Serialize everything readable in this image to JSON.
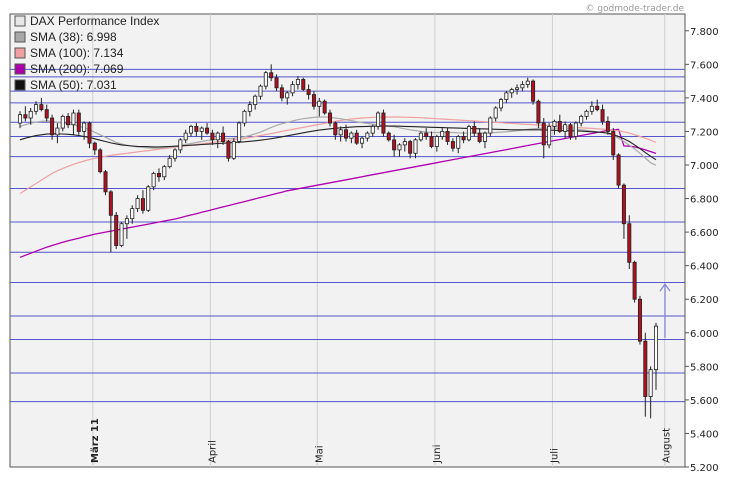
{
  "watermark": "© godmode-trader.de",
  "chart_data": {
    "type": "candlestick",
    "title": "DAX Performance Index",
    "ylim": [
      5200,
      7900
    ],
    "y_ticks": [
      "7.800",
      "7.600",
      "7.400",
      "7.200",
      "7.000",
      "6.800",
      "6.600",
      "6.400",
      "6.200",
      "6.000",
      "5.800",
      "5.600",
      "5.400",
      "5.200"
    ],
    "y_tick_values": [
      7800,
      7600,
      7400,
      7200,
      7000,
      6800,
      6600,
      6400,
      6200,
      6000,
      5800,
      5600,
      5400,
      5200
    ],
    "month_labels": [
      {
        "label": "März 11",
        "bold": true,
        "index": 14
      },
      {
        "label": "April",
        "bold": false,
        "index": 36
      },
      {
        "label": "Mai",
        "bold": false,
        "index": 56
      },
      {
        "label": "Juni",
        "bold": false,
        "index": 78
      },
      {
        "label": "Juli",
        "bold": false,
        "index": 100
      },
      {
        "label": "August",
        "bold": false,
        "index": 121
      }
    ],
    "horizontal_lines": [
      7570,
      7525,
      7440,
      7370,
      7255,
      7170,
      7050,
      6860,
      6660,
      6480,
      6300,
      6100,
      5960,
      5760,
      5590
    ],
    "legend": [
      {
        "label": "DAX Performance Index",
        "swatch": "#e8e8e8",
        "border": "#555555"
      },
      {
        "label": "SMA (38): 6.998",
        "swatch": "#a8a8a8",
        "border": "#555555"
      },
      {
        "label": "SMA (100): 7.134",
        "swatch": "#f0a0a0",
        "border": "#555555"
      },
      {
        "label": "SMA (200): 7.069",
        "swatch": "#aa00aa",
        "border": "#555555"
      },
      {
        "label": "SMA (50): 7.031",
        "swatch": "#111111",
        "border": "#555555"
      }
    ],
    "colors": {
      "up": "#ffffff",
      "down": "#b01020",
      "wick": "#222222",
      "hline": "#5555cc",
      "sma38": "#aaaaaa",
      "sma50": "#222222",
      "sma100": "#f0a0a0",
      "sma200": "#b000b0",
      "arrow": "#8888dd",
      "grid_v": "#d0d0d0",
      "plot_bg": "#f2f2f2"
    },
    "candles": [
      [
        7250,
        7320,
        7220,
        7300
      ],
      [
        7300,
        7350,
        7260,
        7280
      ],
      [
        7280,
        7340,
        7240,
        7320
      ],
      [
        7320,
        7380,
        7300,
        7360
      ],
      [
        7360,
        7400,
        7320,
        7330
      ],
      [
        7330,
        7360,
        7260,
        7280
      ],
      [
        7280,
        7300,
        7150,
        7180
      ],
      [
        7180,
        7250,
        7130,
        7220
      ],
      [
        7220,
        7300,
        7200,
        7290
      ],
      [
        7290,
        7310,
        7220,
        7240
      ],
      [
        7240,
        7330,
        7180,
        7310
      ],
      [
        7310,
        7330,
        7180,
        7200
      ],
      [
        7200,
        7260,
        7150,
        7250
      ],
      [
        7250,
        7260,
        7100,
        7130
      ],
      [
        7130,
        7140,
        7060,
        7090
      ],
      [
        7090,
        7100,
        6950,
        6960
      ],
      [
        6960,
        6970,
        6820,
        6840
      ],
      [
        6840,
        6850,
        6480,
        6700
      ],
      [
        6700,
        6720,
        6500,
        6520
      ],
      [
        6520,
        6660,
        6510,
        6650
      ],
      [
        6650,
        6700,
        6560,
        6680
      ],
      [
        6680,
        6760,
        6650,
        6740
      ],
      [
        6740,
        6820,
        6720,
        6800
      ],
      [
        6800,
        6850,
        6710,
        6730
      ],
      [
        6730,
        6880,
        6720,
        6870
      ],
      [
        6870,
        6960,
        6850,
        6950
      ],
      [
        6950,
        6980,
        6900,
        6930
      ],
      [
        6930,
        7000,
        6910,
        6990
      ],
      [
        6990,
        7060,
        6980,
        7040
      ],
      [
        7040,
        7100,
        7020,
        7090
      ],
      [
        7090,
        7160,
        7070,
        7150
      ],
      [
        7150,
        7210,
        7130,
        7190
      ],
      [
        7190,
        7240,
        7170,
        7230
      ],
      [
        7230,
        7250,
        7170,
        7200
      ],
      [
        7200,
        7230,
        7150,
        7220
      ],
      [
        7220,
        7250,
        7180,
        7190
      ],
      [
        7190,
        7210,
        7120,
        7150
      ],
      [
        7150,
        7200,
        7100,
        7190
      ],
      [
        7190,
        7230,
        7120,
        7140
      ],
      [
        7140,
        7150,
        7020,
        7040
      ],
      [
        7040,
        7160,
        7030,
        7140
      ],
      [
        7140,
        7260,
        7130,
        7250
      ],
      [
        7250,
        7330,
        7230,
        7320
      ],
      [
        7320,
        7380,
        7290,
        7360
      ],
      [
        7360,
        7420,
        7330,
        7410
      ],
      [
        7410,
        7480,
        7390,
        7470
      ],
      [
        7470,
        7560,
        7450,
        7550
      ],
      [
        7550,
        7600,
        7500,
        7520
      ],
      [
        7520,
        7540,
        7440,
        7460
      ],
      [
        7460,
        7480,
        7380,
        7400
      ],
      [
        7400,
        7440,
        7360,
        7430
      ],
      [
        7430,
        7500,
        7410,
        7480
      ],
      [
        7480,
        7530,
        7450,
        7510
      ],
      [
        7510,
        7520,
        7440,
        7450
      ],
      [
        7450,
        7480,
        7390,
        7420
      ],
      [
        7420,
        7440,
        7330,
        7350
      ],
      [
        7350,
        7400,
        7290,
        7380
      ],
      [
        7380,
        7390,
        7300,
        7310
      ],
      [
        7310,
        7330,
        7230,
        7250
      ],
      [
        7250,
        7260,
        7150,
        7180
      ],
      [
        7180,
        7230,
        7140,
        7210
      ],
      [
        7210,
        7240,
        7140,
        7160
      ],
      [
        7160,
        7200,
        7130,
        7190
      ],
      [
        7190,
        7210,
        7120,
        7130
      ],
      [
        7130,
        7170,
        7100,
        7160
      ],
      [
        7160,
        7200,
        7140,
        7190
      ],
      [
        7190,
        7240,
        7170,
        7230
      ],
      [
        7230,
        7320,
        7210,
        7310
      ],
      [
        7310,
        7330,
        7170,
        7190
      ],
      [
        7190,
        7200,
        7140,
        7150
      ],
      [
        7150,
        7180,
        7050,
        7090
      ],
      [
        7090,
        7130,
        7050,
        7120
      ],
      [
        7120,
        7160,
        7080,
        7140
      ],
      [
        7140,
        7150,
        7040,
        7070
      ],
      [
        7070,
        7160,
        7040,
        7150
      ],
      [
        7150,
        7200,
        7140,
        7190
      ],
      [
        7190,
        7220,
        7150,
        7170
      ],
      [
        7170,
        7200,
        7100,
        7110
      ],
      [
        7110,
        7180,
        7080,
        7170
      ],
      [
        7170,
        7220,
        7150,
        7200
      ],
      [
        7200,
        7220,
        7120,
        7140
      ],
      [
        7140,
        7160,
        7080,
        7100
      ],
      [
        7100,
        7180,
        7070,
        7170
      ],
      [
        7170,
        7200,
        7130,
        7150
      ],
      [
        7150,
        7240,
        7140,
        7230
      ],
      [
        7230,
        7260,
        7170,
        7190
      ],
      [
        7190,
        7220,
        7130,
        7140
      ],
      [
        7140,
        7200,
        7100,
        7190
      ],
      [
        7190,
        7290,
        7170,
        7280
      ],
      [
        7280,
        7350,
        7260,
        7340
      ],
      [
        7340,
        7400,
        7320,
        7390
      ],
      [
        7390,
        7440,
        7370,
        7430
      ],
      [
        7430,
        7460,
        7400,
        7450
      ],
      [
        7450,
        7480,
        7420,
        7460
      ],
      [
        7460,
        7500,
        7440,
        7480
      ],
      [
        7480,
        7520,
        7460,
        7500
      ],
      [
        7500,
        7510,
        7360,
        7380
      ],
      [
        7380,
        7390,
        7220,
        7250
      ],
      [
        7250,
        7280,
        7040,
        7120
      ],
      [
        7120,
        7250,
        7100,
        7230
      ],
      [
        7230,
        7270,
        7180,
        7260
      ],
      [
        7260,
        7300,
        7190,
        7200
      ],
      [
        7200,
        7260,
        7160,
        7240
      ],
      [
        7240,
        7250,
        7150,
        7170
      ],
      [
        7170,
        7260,
        7150,
        7250
      ],
      [
        7250,
        7300,
        7230,
        7290
      ],
      [
        7290,
        7330,
        7270,
        7320
      ],
      [
        7320,
        7380,
        7300,
        7350
      ],
      [
        7350,
        7390,
        7320,
        7330
      ],
      [
        7330,
        7360,
        7240,
        7260
      ],
      [
        7260,
        7290,
        7180,
        7200
      ],
      [
        7200,
        7220,
        7030,
        7060
      ],
      [
        7060,
        7070,
        6860,
        6880
      ],
      [
        6880,
        6890,
        6560,
        6650
      ],
      [
        6650,
        6700,
        6380,
        6420
      ],
      [
        6420,
        6430,
        6180,
        6200
      ],
      [
        6200,
        6220,
        5930,
        5950
      ],
      [
        5950,
        6000,
        5500,
        5620
      ],
      [
        5620,
        5800,
        5490,
        5780
      ],
      [
        5780,
        6060,
        5660,
        6040
      ]
    ],
    "sma38": [
      7230,
      7240,
      7250,
      7255,
      7260,
      7262,
      7260,
      7255,
      7250,
      7245,
      7240,
      7232,
      7222,
      7210,
      7195,
      7180,
      7165,
      7150,
      7135,
      7125,
      7118,
      7112,
      7108,
      7105,
      7102,
      7100,
      7100,
      7102,
      7106,
      7110,
      7116,
      7122,
      7128,
      7134,
      7140,
      7146,
      7150,
      7154,
      7156,
      7158,
      7160,
      7164,
      7168,
      7176,
      7186,
      7196,
      7210,
      7224,
      7236,
      7246,
      7254,
      7262,
      7270,
      7276,
      7280,
      7284,
      7286,
      7286,
      7284,
      7280,
      7276,
      7270,
      7264,
      7258,
      7252,
      7248,
      7244,
      7240,
      7236,
      7232,
      7228,
      7222,
      7216,
      7210,
      7205,
      7200,
      7196,
      7194,
      7194,
      7194,
      7194,
      7194,
      7192,
      7190,
      7190,
      7190,
      7190,
      7191,
      7192,
      7194,
      7196,
      7198,
      7200,
      7204,
      7208,
      7212,
      7216,
      7218,
      7220,
      7220,
      7220,
      7220,
      7218,
      7216,
      7214,
      7210,
      7206,
      7202,
      7198,
      7194,
      7188,
      7176,
      7160,
      7140,
      7118,
      7096,
      7070,
      7042,
      7014,
      6998
    ],
    "sma50": [
      7150,
      7160,
      7168,
      7175,
      7180,
      7184,
      7186,
      7186,
      7185,
      7183,
      7180,
      7176,
      7170,
      7164,
      7156,
      7148,
      7140,
      7132,
      7126,
      7120,
      7116,
      7113,
      7111,
      7110,
      7109,
      7108,
      7108,
      7109,
      7110,
      7112,
      7114,
      7116,
      7118,
      7120,
      7122,
      7124,
      7126,
      7128,
      7130,
      7132,
      7134,
      7136,
      7138,
      7141,
      7144,
      7148,
      7152,
      7157,
      7162,
      7168,
      7174,
      7180,
      7186,
      7192,
      7198,
      7203,
      7208,
      7212,
      7216,
      7219,
      7222,
      7224,
      7226,
      7228,
      7229,
      7230,
      7231,
      7232,
      7232,
      7232,
      7232,
      7231,
      7230,
      7229,
      7228,
      7227,
      7226,
      7225,
      7224,
      7223,
      7222,
      7221,
      7220,
      7219,
      7218,
      7217,
      7216,
      7215,
      7214,
      7213,
      7212,
      7211,
      7210,
      7210,
      7210,
      7210,
      7210,
      7210,
      7209,
      7208,
      7207,
      7206,
      7205,
      7204,
      7203,
      7202,
      7200,
      7198,
      7196,
      7194,
      7190,
      7182,
      7170,
      7156,
      7140,
      7120,
      7098,
      7074,
      7052,
      7031
    ],
    "sma100": [
      6830,
      6850,
      6870,
      6890,
      6910,
      6930,
      6950,
      6966,
      6980,
      6992,
      7004,
      7014,
      7024,
      7032,
      7040,
      7046,
      7052,
      7058,
      7062,
      7066,
      7070,
      7074,
      7078,
      7082,
      7086,
      7090,
      7094,
      7098,
      7102,
      7106,
      7110,
      7114,
      7118,
      7122,
      7126,
      7130,
      7134,
      7138,
      7142,
      7146,
      7150,
      7154,
      7158,
      7164,
      7170,
      7176,
      7182,
      7188,
      7194,
      7200,
      7206,
      7212,
      7218,
      7224,
      7230,
      7236,
      7242,
      7248,
      7254,
      7260,
      7266,
      7270,
      7274,
      7277,
      7280,
      7282,
      7284,
      7285,
      7286,
      7286,
      7286,
      7286,
      7285,
      7284,
      7283,
      7282,
      7280,
      7278,
      7276,
      7274,
      7272,
      7270,
      7268,
      7266,
      7264,
      7262,
      7260,
      7258,
      7256,
      7254,
      7252,
      7250,
      7248,
      7246,
      7244,
      7242,
      7240,
      7238,
      7236,
      7234,
      7232,
      7230,
      7228,
      7226,
      7224,
      7222,
      7220,
      7218,
      7216,
      7214,
      7212,
      7208,
      7204,
      7198,
      7190,
      7180,
      7170,
      7160,
      7148,
      7134
    ],
    "sma200": [
      6450,
      6462,
      6474,
      6486,
      6498,
      6510,
      6520,
      6530,
      6540,
      6548,
      6556,
      6564,
      6572,
      6580,
      6588,
      6594,
      6600,
      6606,
      6612,
      6618,
      6624,
      6630,
      6636,
      6642,
      6648,
      6654,
      6660,
      6666,
      6672,
      6678,
      6686,
      6694,
      6702,
      6710,
      6718,
      6726,
      6734,
      6742,
      6750,
      6758,
      6766,
      6774,
      6782,
      6790,
      6798,
      6806,
      6814,
      6822,
      6830,
      6838,
      6846,
      6852,
      6858,
      6864,
      6870,
      6876,
      6882,
      6888,
      6894,
      6900,
      6906,
      6912,
      6918,
      6924,
      6930,
      6936,
      6942,
      6948,
      6954,
      6960,
      6966,
      6972,
      6978,
      6984,
      6990,
      6996,
      7002,
      7008,
      7014,
      7020,
      7026,
      7032,
      7038,
      7044,
      7050,
      7056,
      7062,
      7068,
      7074,
      7080,
      7086,
      7092,
      7098,
      7104,
      7110,
      7116,
      7122,
      7128,
      7134,
      7140,
      7146,
      7152,
      7158,
      7164,
      7170,
      7176,
      7182,
      7188,
      7194,
      7200,
      7206,
      7210,
      7212,
      7114,
      7112,
      7108,
      7100,
      7090,
      7080,
      7069
    ],
    "arrow": {
      "from": 5970,
      "to": 6290
    }
  }
}
